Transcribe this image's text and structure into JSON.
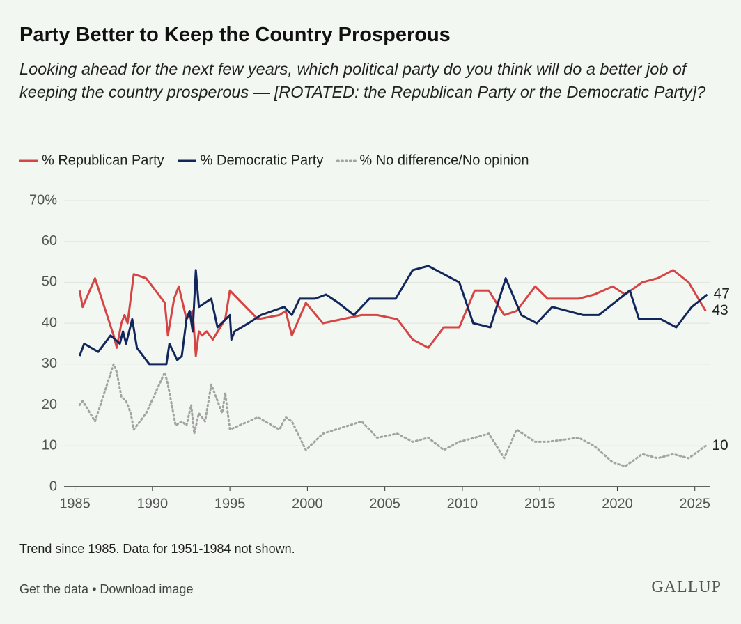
{
  "chart_data": {
    "type": "line",
    "title": "Party Better to Keep the Country Prosperous",
    "subtitle": "Looking ahead for the next few years, which political party do you think will do a better job of keeping the country prosperous — [ROTATED: the Republican Party or the Democratic Party]?",
    "series": [
      {
        "name": "% Republican Party",
        "color": "#d64545",
        "style": "solid",
        "x": [
          1985.3,
          1985.5,
          1986.3,
          1987.5,
          1987.7,
          1988,
          1988.2,
          1988.4,
          1988.8,
          1989.6,
          1990.8,
          1991,
          1991.4,
          1991.7,
          1992.2,
          1992.6,
          1992.8,
          1993,
          1993.2,
          1993.5,
          1993.9,
          1994.7,
          1995,
          1996.8,
          1998.2,
          1998.6,
          1999,
          1999.9,
          2001,
          2003.5,
          2004.5,
          2005.8,
          2006.8,
          2007.8,
          2008.8,
          2009.8,
          2010.8,
          2011.7,
          2012.7,
          2013.5,
          2014.7,
          2015.5,
          2017.5,
          2018.5,
          2019.7,
          2020.5,
          2021.6,
          2022.6,
          2023.6,
          2024.6,
          2025.7
        ],
        "values": [
          48,
          44,
          51,
          37,
          34,
          40,
          42,
          40,
          52,
          51,
          45,
          37,
          46,
          49,
          41,
          43,
          32,
          38,
          37,
          38,
          36,
          41,
          48,
          41,
          42,
          43,
          37,
          45,
          40,
          42,
          42,
          41,
          36,
          34,
          39,
          39,
          48,
          48,
          42,
          43,
          49,
          46,
          46,
          47,
          49,
          47,
          50,
          51,
          53,
          50,
          43
        ]
      },
      {
        "name": "% Democratic Party",
        "color": "#13265c",
        "style": "solid",
        "x": [
          1985.3,
          1985.6,
          1986.5,
          1987.3,
          1987.9,
          1988.1,
          1988.3,
          1988.7,
          1989,
          1989.8,
          1990.9,
          1991.1,
          1991.6,
          1991.9,
          1992.2,
          1992.4,
          1992.6,
          1992.8,
          1993,
          1993.4,
          1993.8,
          1994.2,
          1995,
          1995.1,
          1995.3,
          1996.2,
          1997,
          1998.5,
          1999,
          1999.5,
          2000.5,
          2001.2,
          2002,
          2003,
          2004,
          2005.7,
          2006.8,
          2007.8,
          2009.8,
          2010.7,
          2011.8,
          2012.8,
          2013.8,
          2014.8,
          2015.8,
          2017.8,
          2018.8,
          2020.8,
          2021.4,
          2022.8,
          2023.8,
          2024.8,
          2025.8
        ],
        "values": [
          32,
          35,
          33,
          37,
          35,
          38,
          35,
          41,
          34,
          30,
          30,
          35,
          31,
          32,
          41,
          43,
          38,
          53,
          44,
          45,
          46,
          39,
          42,
          36,
          38,
          40,
          42,
          44,
          42,
          46,
          46,
          47,
          45,
          42,
          46,
          46,
          53,
          54,
          50,
          40,
          39,
          51,
          42,
          40,
          44,
          42,
          42,
          48,
          41,
          41,
          39,
          44,
          47
        ]
      },
      {
        "name": "% No difference/No opinion",
        "color": "#a3a3a3",
        "style": "dotted",
        "x": [
          1985.3,
          1985.5,
          1986.3,
          1987.5,
          1987.7,
          1988,
          1988.3,
          1988.6,
          1988.8,
          1989.6,
          1990.8,
          1991,
          1991.5,
          1991.9,
          1992.2,
          1992.5,
          1992.7,
          1993,
          1993.4,
          1993.8,
          1994.5,
          1994.7,
          1995,
          1996.8,
          1998.2,
          1998.6,
          1999,
          1999.9,
          2001,
          2003.5,
          2004.5,
          2005.8,
          2006.8,
          2007.8,
          2008.8,
          2009.8,
          2010.8,
          2011.7,
          2012.7,
          2013.5,
          2014.7,
          2015.5,
          2017.5,
          2018.5,
          2019.7,
          2020.5,
          2021.6,
          2022.6,
          2023.6,
          2024.6,
          2025.7
        ],
        "values": [
          20,
          21,
          16,
          30,
          28,
          22,
          21,
          18,
          14,
          18,
          28,
          25,
          15,
          16,
          15,
          20,
          13,
          18,
          16,
          25,
          18,
          23,
          14,
          17,
          14,
          17,
          16,
          9,
          13,
          16,
          12,
          13,
          11,
          12,
          9,
          11,
          12,
          13,
          7,
          14,
          11,
          11,
          12,
          10,
          6,
          5,
          8,
          7,
          8,
          7,
          10
        ]
      }
    ],
    "xlim": [
      1984.3,
      2026
    ],
    "xticks": [
      1985,
      1990,
      1995,
      2000,
      2005,
      2010,
      2015,
      2020,
      2025
    ],
    "ylim": [
      0,
      70
    ],
    "yticks": [
      0,
      10,
      20,
      30,
      40,
      50,
      60,
      {
        "value": 70,
        "label": "70%"
      }
    ],
    "grid": true,
    "legend": "top",
    "note": "Trend since 1985. Data for 1951-1984 not shown.",
    "links": "Get the data • Download image",
    "brand": "GALLUP"
  }
}
